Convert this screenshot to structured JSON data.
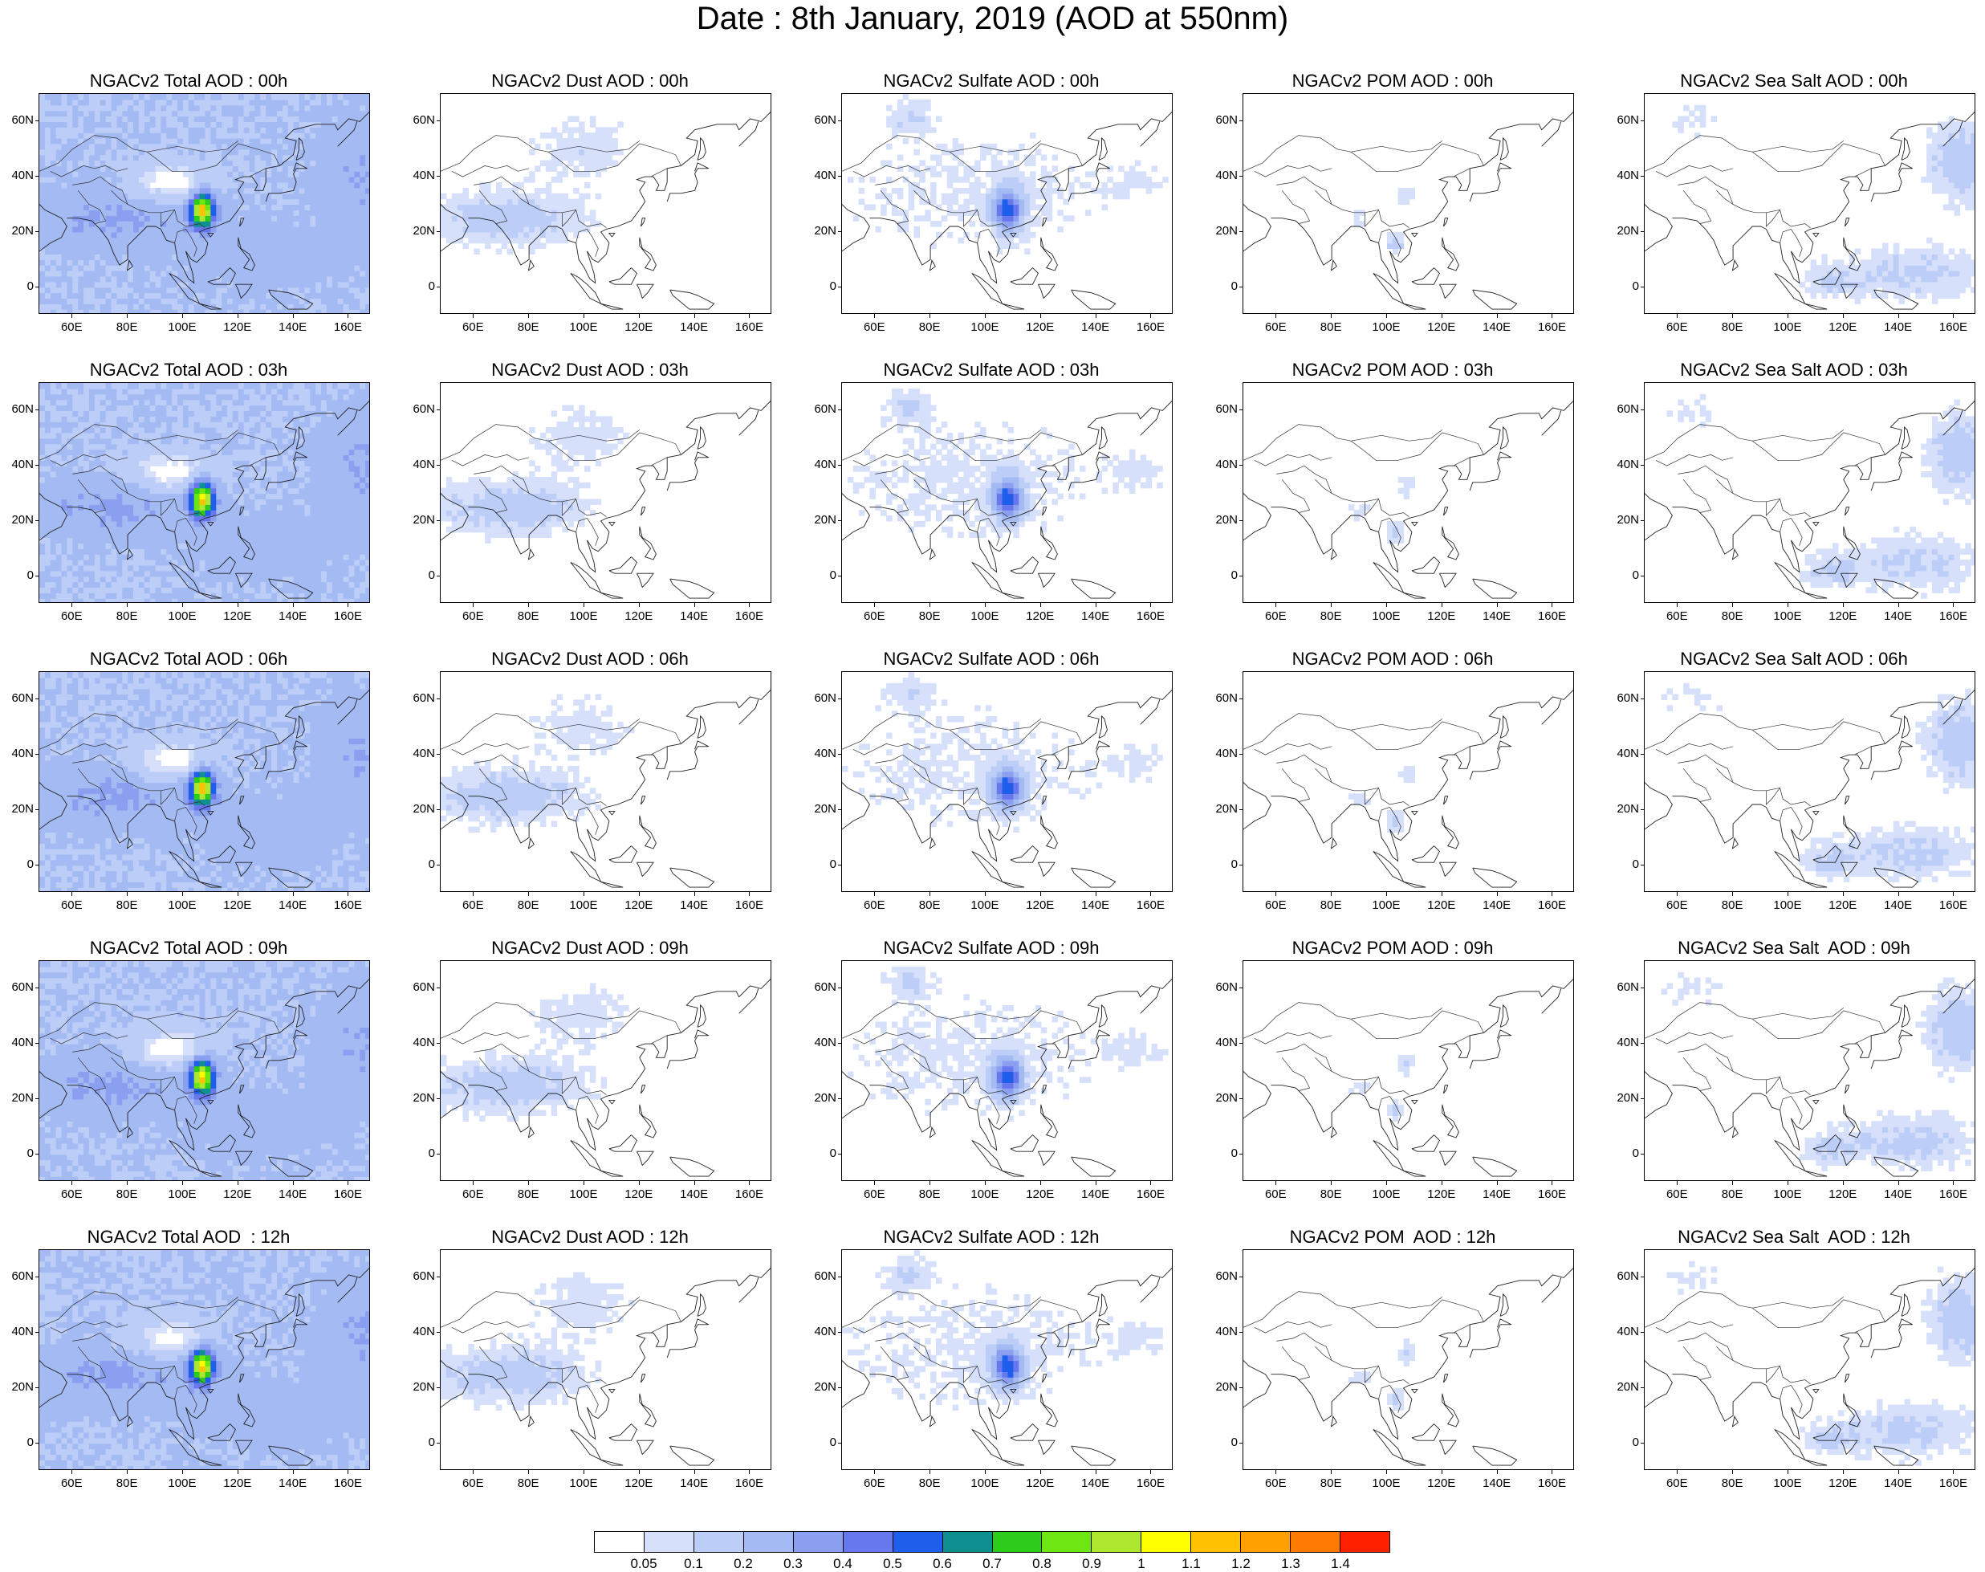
{
  "title": "Date : 8th January, 2019 (AOD at 550nm)",
  "x_ticks": [
    "60E",
    "80E",
    "100E",
    "120E",
    "140E",
    "160E"
  ],
  "y_ticks": [
    "60N",
    "40N",
    "20N",
    "0"
  ],
  "columns": [
    {
      "species": "total",
      "intensity": 1.0,
      "hotspot": true
    },
    {
      "species": "dust",
      "intensity": 0.6,
      "hotspot": false
    },
    {
      "species": "sulfate",
      "intensity": 0.6,
      "hotspot": true
    },
    {
      "species": "pom",
      "intensity": 0.3,
      "hotspot": false
    },
    {
      "species": "seasalt",
      "intensity": 0.6,
      "hotspot": false
    }
  ],
  "panel_titles": [
    [
      "NGACv2 Total AOD : 00h",
      "NGACv2 Dust AOD : 00h",
      "NGACv2 Sulfate AOD : 00h",
      "NGACv2 POM AOD : 00h",
      "NGACv2 Sea Salt AOD : 00h"
    ],
    [
      "NGACv2 Total AOD : 03h",
      "NGACv2 Dust AOD : 03h",
      "NGACv2 Sulfate AOD : 03h",
      "NGACv2 POM AOD : 03h",
      "NGACv2 Sea Salt AOD : 03h"
    ],
    [
      "NGACv2 Total AOD : 06h",
      "NGACv2 Dust AOD : 06h",
      "NGACv2 Sulfate AOD : 06h",
      "NGACv2 POM AOD : 06h",
      "NGACv2 Sea Salt AOD : 06h"
    ],
    [
      "NGACv2 Total AOD : 09h",
      "NGACv2 Dust AOD : 09h",
      "NGACv2 Sulfate AOD : 09h",
      "NGACv2 POM AOD : 09h",
      "NGACv2 Sea Salt  AOD : 09h"
    ],
    [
      "NGACv2 Total AOD  : 12h",
      "NGACv2 Dust AOD : 12h",
      "NGACv2 Sulfate AOD : 12h",
      "NGACv2 POM  AOD : 12h",
      "NGACv2 Sea Salt  AOD : 12h"
    ]
  ],
  "colorbar": {
    "colors": [
      "#ffffff",
      "#d6e0fb",
      "#bccdf7",
      "#a4baf3",
      "#8a9ff0",
      "#6777ee",
      "#1f5eea",
      "#0e9090",
      "#2ecc1a",
      "#6ee614",
      "#aee82e",
      "#ffff00",
      "#ffc100",
      "#ff9f00",
      "#ff7a00",
      "#ff2000"
    ],
    "labels": [
      "0.05",
      "0.1",
      "0.2",
      "0.3",
      "0.4",
      "0.5",
      "0.6",
      "0.7",
      "0.8",
      "0.9",
      "1",
      "1.1",
      "1.2",
      "1.3",
      "1.4"
    ]
  }
}
